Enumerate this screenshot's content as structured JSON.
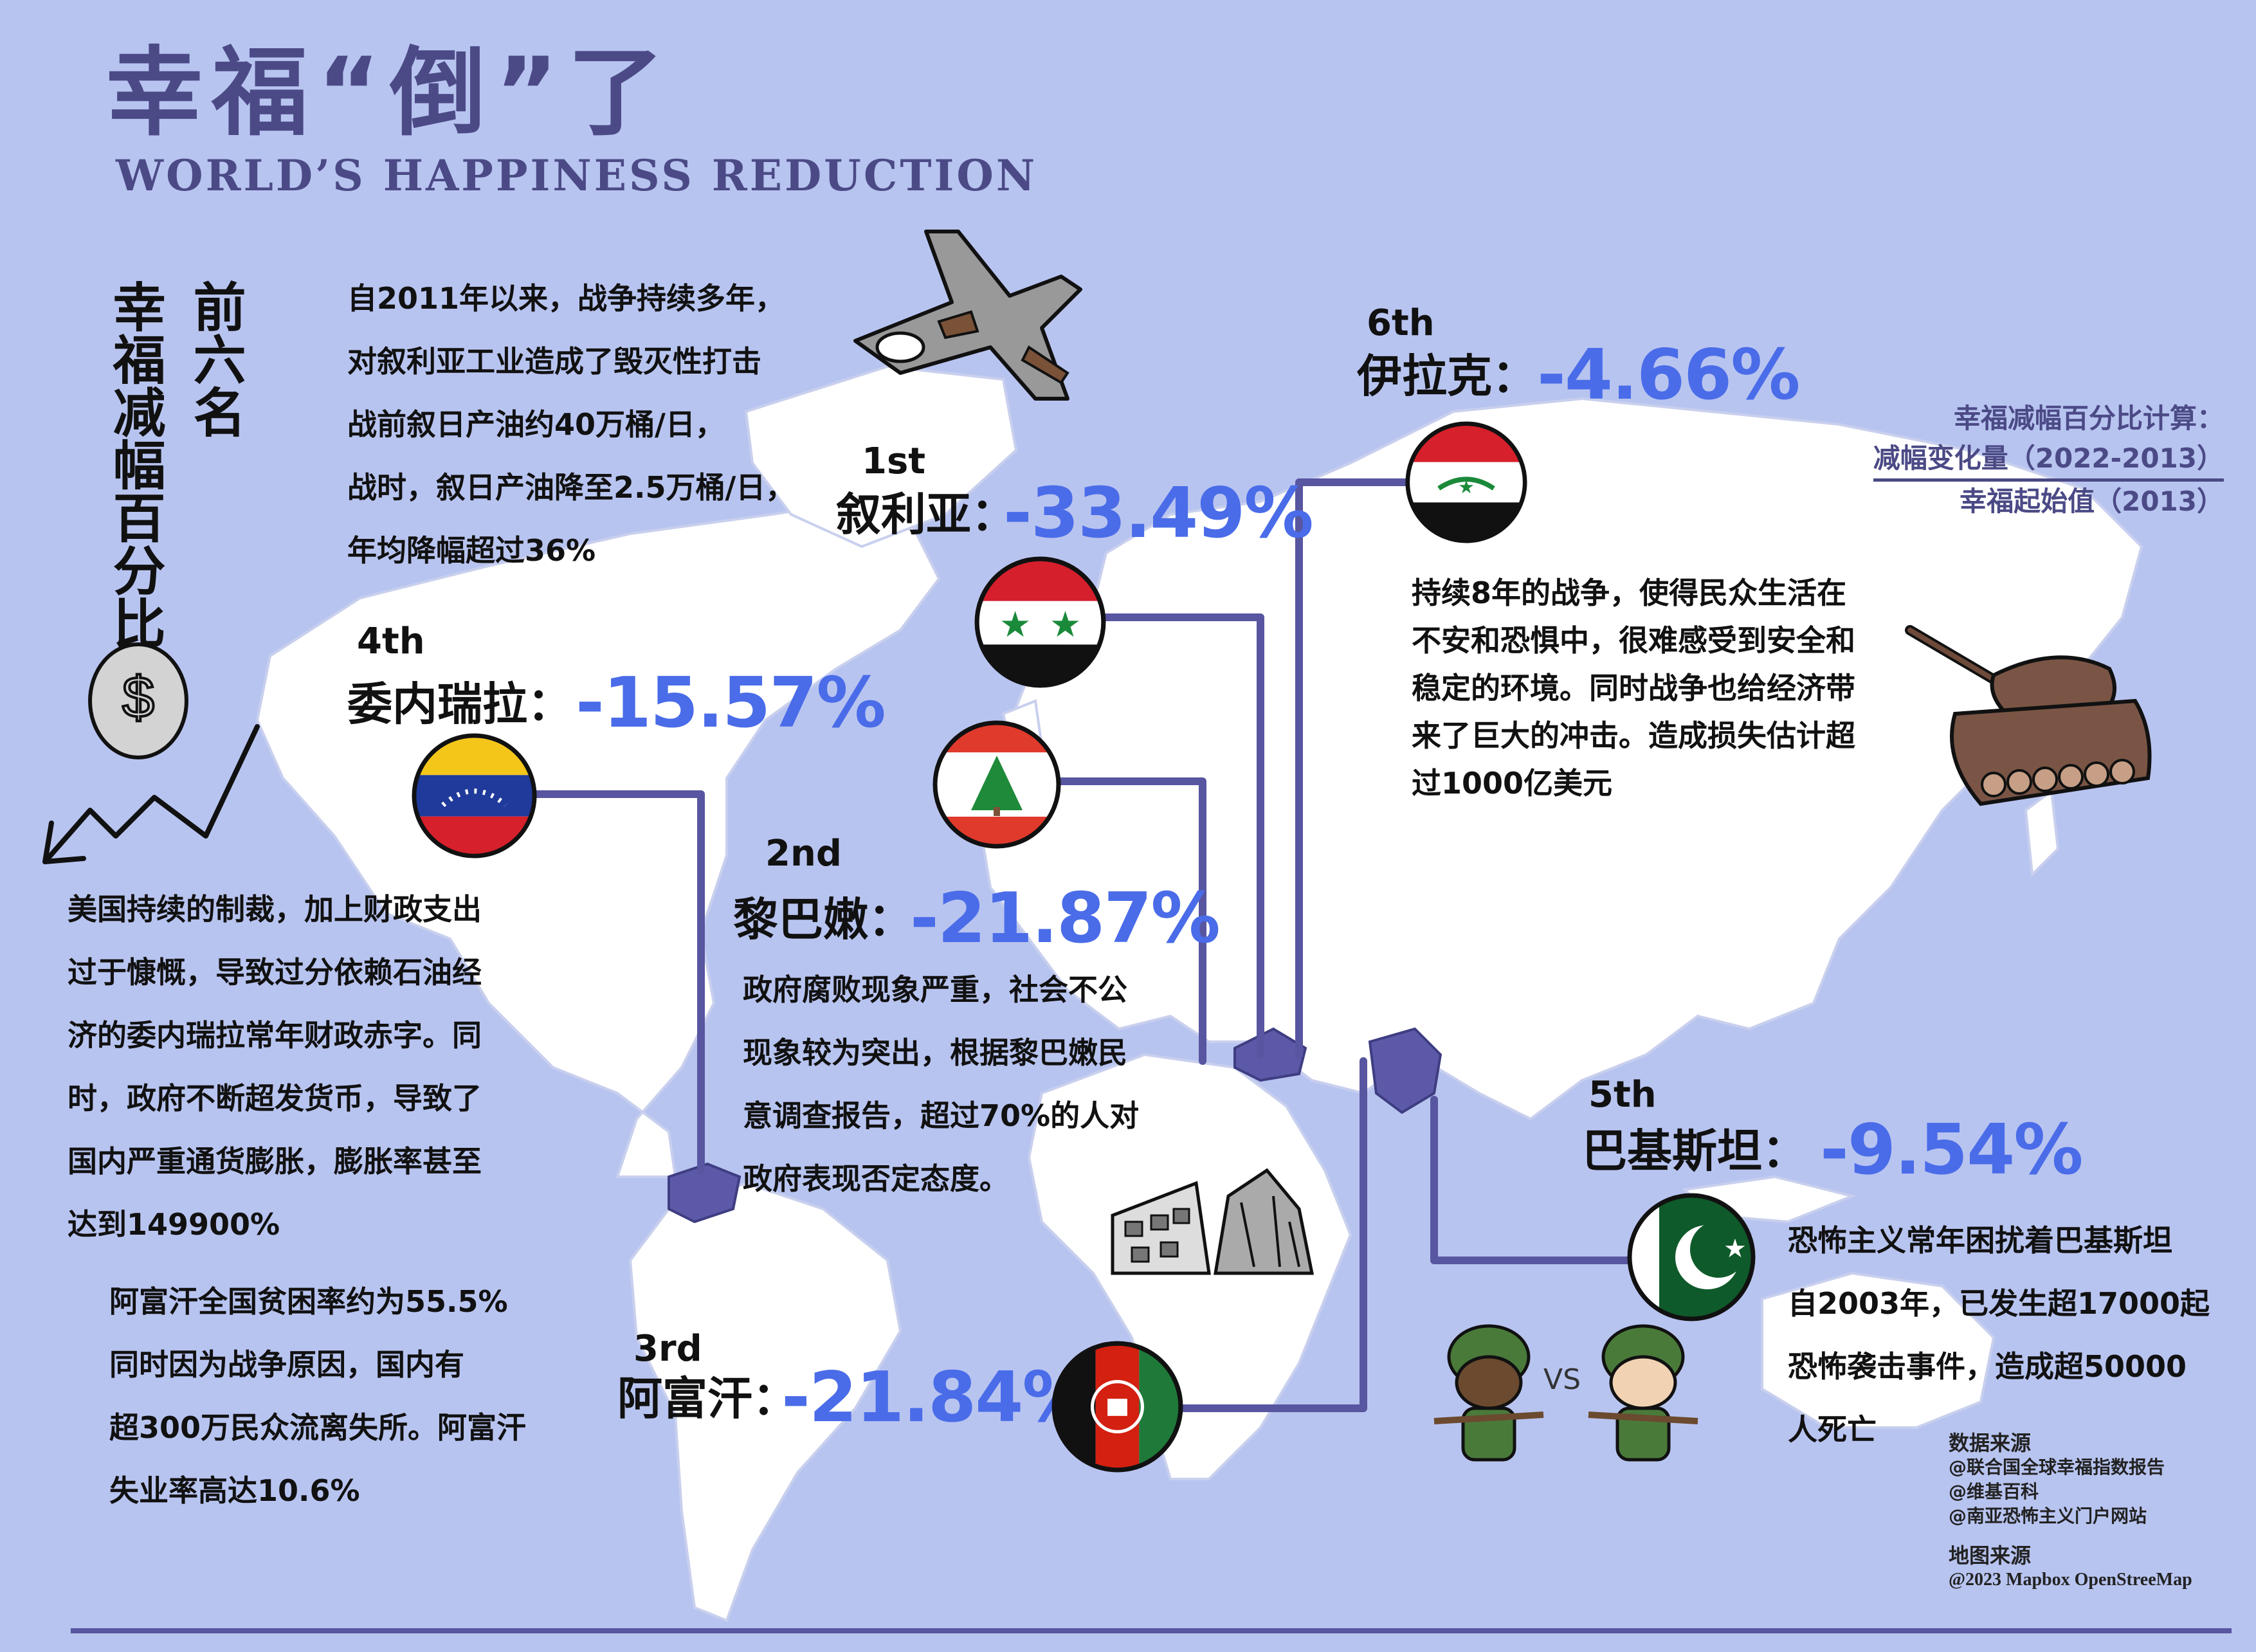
{
  "header": {
    "title_cn": "幸福“倒”了",
    "title_en": "WORLD’S HAPPINESS REDUCTION"
  },
  "sidebar": {
    "col1": "前六名",
    "col2": "幸福减幅百分比"
  },
  "formula": {
    "heading": "幸福减幅百分比计算：",
    "numerator": "减幅变化量（2022-2013）",
    "denominator": "幸福起始值（2013）"
  },
  "countries": [
    {
      "rank": "1st",
      "name": "叙利亚：",
      "value": "-33.49%",
      "text": [
        "自2011年以来，战争持续多年，",
        "对叙利亚工业造成了毁灭性打击",
        "战前叙日产油约40万桶/日，",
        "战时，叙日产油降至2.5万桶/日，",
        "年均降幅超过36%"
      ]
    },
    {
      "rank": "2nd",
      "name": "黎巴嫩：",
      "value": "-21.87%",
      "text": [
        "政府腐败现象严重，社会不公",
        "现象较为突出，根据黎巴嫩民",
        "意调查报告，超过70%的人对",
        "政府表现否定态度。"
      ]
    },
    {
      "rank": "3rd",
      "name": "阿富汗：",
      "value": "-21.84%",
      "text": [
        "阿富汗全国贫困率约为55.5%",
        "同时因为战争原因，国内有",
        "超300万民众流离失所。阿富汗",
        "失业率高达10.6%"
      ]
    },
    {
      "rank": "4th",
      "name": "委内瑞拉：",
      "value": "-15.57%",
      "text": [
        "美国持续的制裁，加上财政支出",
        "过于慷慨，导致过分依赖石油经",
        "济的委内瑞拉常年财政赤字。同",
        "时，政府不断超发货币，导致了",
        "国内严重通货膨胀，膨胀率甚至",
        "达到149900%"
      ]
    },
    {
      "rank": "5th",
      "name": "巴基斯坦：",
      "value": "-9.54%",
      "text": [
        "恐怖主义常年困扰着巴基斯坦",
        "自2003年，已发生超17000起",
        "恐怖袭击事件，造成超50000",
        "人死亡"
      ]
    },
    {
      "rank": "6th",
      "name": "伊拉克：",
      "value": "-4.66%",
      "text": [
        "持续8年的战争，使得民众生活在",
        "不安和恐惧中，很难感受到安全和",
        "稳定的环境。同时战争也给经济带",
        "来了巨大的冲击。造成损失估计超",
        "过1000亿美元"
      ]
    }
  ],
  "vs_label": "VS",
  "sources": {
    "data_heading": "数据来源",
    "data_items": [
      "@联合国全球幸福指数报告",
      "@维基百科",
      "@南亚恐怖主义门户网站"
    ],
    "map_heading": "地图来源",
    "map_credit": "@2023 Mapbox OpenStreeMap"
  },
  "icons": [
    "fighter-jet-icon",
    "money-coin-icon",
    "down-arrow-icon",
    "tank-icon",
    "ruins-icon",
    "soldier-icon"
  ],
  "colors": {
    "background": "#b8c4f0",
    "land": "#ffffff",
    "title": "#4b4a86",
    "percent": "#4a6ce8",
    "connector": "#5856a0",
    "highlight": "#5c5aa8"
  }
}
